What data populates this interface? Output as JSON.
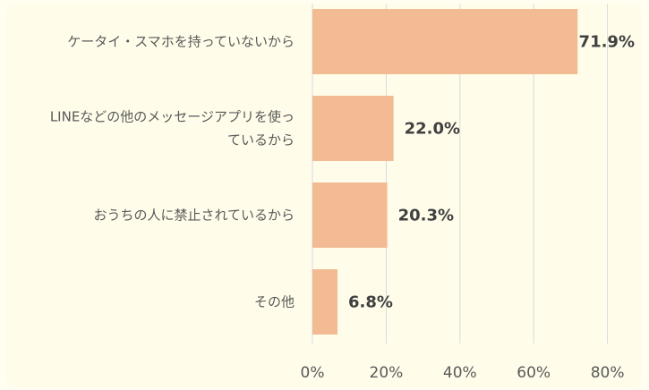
{
  "colors": {
    "bar": "#f2bb94",
    "grid": "#d9d9d9",
    "background": "#fffdea"
  },
  "chart_data": {
    "type": "bar",
    "orientation": "horizontal",
    "categories": [
      [
        "ケータイ・スマホを持っていないから"
      ],
      [
        "LINEなどの他のメッセージアプリを使っ",
        "ているから"
      ],
      [
        "おうちの人に禁止されているから"
      ],
      [
        "その他"
      ]
    ],
    "values": [
      71.9,
      22.0,
      20.3,
      6.8
    ],
    "value_labels": [
      "71.9%",
      "22.0%",
      "20.3%",
      "6.8%"
    ],
    "xlim": [
      0,
      80
    ],
    "ticks": [
      0,
      20,
      40,
      60,
      80
    ],
    "tick_labels": [
      "0%",
      "20%",
      "40%",
      "60%",
      "80%"
    ],
    "grid": true,
    "title": "",
    "xlabel": "",
    "ylabel": ""
  }
}
